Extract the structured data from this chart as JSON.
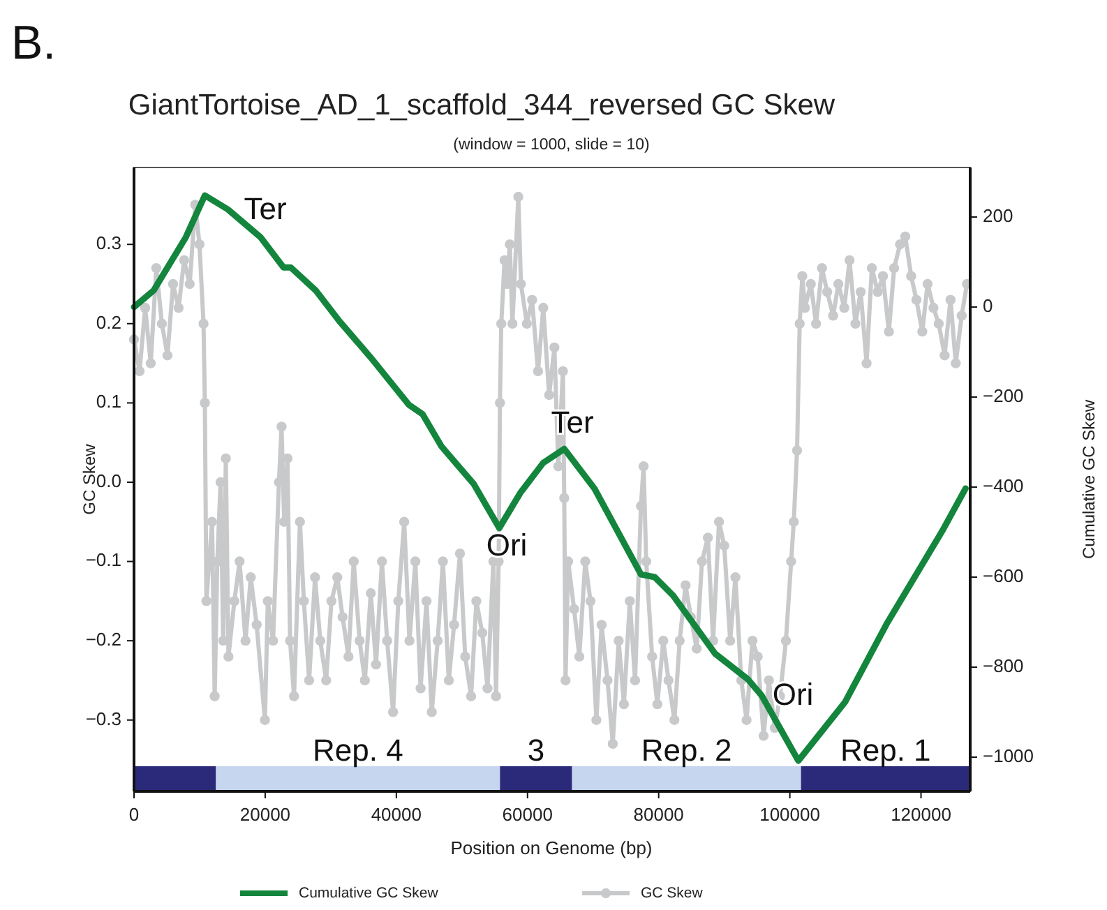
{
  "chart_data": {
    "type": "line",
    "title": "GiantTortoise_AD_1_scaffold_344_reversed GC Skew",
    "subtitle": "(window = 1000, slide = 10)",
    "xlabel": "Position on Genome (bp)",
    "ylabel": "GC Skew",
    "y2label": "Cumulative GC Skew",
    "annotations": [
      "B.",
      "Ter",
      "Ori",
      "Ter",
      "Ori"
    ],
    "xlim": [
      0,
      127500
    ],
    "xticks": [
      0,
      20000,
      40000,
      60000,
      80000,
      100000,
      120000
    ],
    "ylim": [
      -0.39,
      0.397
    ],
    "yticks": [
      {
        "value": -0.3,
        "label": "−0.3"
      },
      {
        "value": -0.2,
        "label": "−0.2"
      },
      {
        "value": -0.1,
        "label": "−0.1"
      },
      {
        "value": 0,
        "label": "0.0"
      },
      0.1,
      0.2,
      0.3
    ],
    "y2lim": [
      -1076,
      310
    ],
    "y2ticks": [
      {
        "value": -1000,
        "label": "−1000"
      },
      {
        "value": -800,
        "label": "−800"
      },
      {
        "value": -600,
        "label": "−600"
      },
      {
        "value": -400,
        "label": "−400"
      },
      {
        "value": -200,
        "label": "−200"
      },
      0,
      200
    ],
    "legend": "bottom",
    "grid": false,
    "bands": [
      {
        "axis": "x",
        "from": 0,
        "to": 12500,
        "label": null,
        "color": "#2b2a7a"
      },
      {
        "axis": "x",
        "from": 12500,
        "to": 55800,
        "label": "Rep. 4",
        "color": "#c5d6ee"
      },
      {
        "axis": "x",
        "from": 55800,
        "to": 66800,
        "label": "3",
        "color": "#2b2a7a"
      },
      {
        "axis": "x",
        "from": 66800,
        "to": 101700,
        "label": "Rep. 2",
        "color": "#c5d6ee"
      },
      {
        "axis": "x",
        "from": 101700,
        "to": 127500,
        "label": "Rep. 1",
        "color": "#2b2a7a"
      }
    ],
    "series": [
      {
        "name": "Cumulative GC Skew",
        "color": "#14853d",
        "axis": "y2",
        "marker": "none",
        "line_style": "solid",
        "x": [
          0,
          3000,
          7900,
          10800,
          14300,
          19300,
          22800,
          23900,
          27700,
          31300,
          36200,
          41900,
          44000,
          46900,
          51800,
          55700,
          58900,
          62400,
          65600,
          70200,
          77300,
          79400,
          82200,
          88600,
          93600,
          95700,
          101300,
          108400,
          114800,
          123300,
          126800
        ],
        "values": [
          0,
          37,
          155,
          248,
          217,
          155,
          88,
          88,
          37,
          -31,
          -114,
          -217,
          -238,
          -310,
          -393,
          -491,
          -413,
          -346,
          -315,
          -403,
          -594,
          -600,
          -641,
          -770,
          -827,
          -863,
          -1008,
          -878,
          -703,
          -496,
          -403
        ]
      },
      {
        "name": "GC Skew",
        "color": "#c8c9cb",
        "marker": "circle",
        "line_style": "solid",
        "x": [
          0,
          850,
          1700,
          2550,
          3400,
          4250,
          5100,
          5950,
          6800,
          7640,
          8490,
          9340,
          9980,
          10600,
          10800,
          11040,
          11900,
          12300,
          12700,
          13200,
          13600,
          14000,
          14400,
          15300,
          16100,
          17000,
          17800,
          18700,
          19960,
          20400,
          21200,
          22100,
          22500,
          22900,
          23400,
          23800,
          24400,
          25300,
          25900,
          26700,
          27600,
          28400,
          29300,
          30100,
          31000,
          31800,
          32700,
          33500,
          34400,
          35200,
          36100,
          36900,
          37800,
          38600,
          39500,
          40300,
          41200,
          42000,
          42900,
          43700,
          44600,
          45400,
          46300,
          47100,
          48000,
          48800,
          49700,
          50500,
          51400,
          52200,
          53100,
          53900,
          54800,
          55200,
          55600,
          55800,
          56000,
          56500,
          56900,
          57300,
          57700,
          58600,
          59000,
          59900,
          60700,
          61600,
          62400,
          63300,
          64100,
          64700,
          65400,
          65600,
          65800,
          66200,
          67100,
          67900,
          68800,
          69600,
          70500,
          71300,
          72200,
          73000,
          73900,
          74700,
          75600,
          76400,
          77300,
          77700,
          78100,
          79000,
          79800,
          80700,
          81500,
          82400,
          83200,
          84100,
          84900,
          85800,
          86600,
          87500,
          88300,
          89200,
          90000,
          90900,
          91700,
          92600,
          93400,
          94300,
          95100,
          96000,
          96800,
          97700,
          98500,
          99400,
          100200,
          100600,
          101100,
          101500,
          101900,
          102300,
          103200,
          104000,
          104900,
          105700,
          106600,
          107400,
          108300,
          109100,
          110000,
          110800,
          111700,
          112500,
          113400,
          114200,
          115100,
          115900,
          116800,
          117600,
          118500,
          119300,
          120200,
          121000,
          121900,
          122700,
          123600,
          124500,
          125300,
          126200,
          127000
        ],
        "values": [
          0.18,
          0.14,
          0.22,
          0.15,
          0.27,
          0.2,
          0.16,
          0.25,
          0.22,
          0.28,
          0.25,
          0.35,
          0.3,
          0.2,
          0.1,
          -0.15,
          -0.05,
          -0.27,
          -0.1,
          0.0,
          -0.2,
          0.03,
          -0.22,
          -0.15,
          -0.1,
          -0.2,
          -0.12,
          -0.18,
          -0.3,
          -0.15,
          -0.2,
          0.0,
          0.07,
          -0.05,
          0.03,
          -0.2,
          -0.27,
          -0.05,
          -0.15,
          -0.25,
          -0.12,
          -0.2,
          -0.25,
          -0.15,
          -0.12,
          -0.17,
          -0.22,
          -0.1,
          -0.2,
          -0.25,
          -0.14,
          -0.23,
          -0.1,
          -0.2,
          -0.29,
          -0.15,
          -0.05,
          -0.2,
          -0.1,
          -0.26,
          -0.15,
          -0.29,
          -0.2,
          -0.1,
          -0.25,
          -0.18,
          -0.09,
          -0.22,
          -0.27,
          -0.15,
          -0.19,
          -0.26,
          -0.1,
          -0.27,
          -0.1,
          0.1,
          0.2,
          0.28,
          0.25,
          0.3,
          0.2,
          0.36,
          0.25,
          0.2,
          0.23,
          0.14,
          0.22,
          0.11,
          0.17,
          0.02,
          0.14,
          -0.02,
          -0.25,
          -0.1,
          -0.16,
          -0.22,
          -0.1,
          -0.15,
          -0.3,
          -0.18,
          -0.25,
          -0.33,
          -0.2,
          -0.28,
          -0.15,
          -0.25,
          -0.03,
          0.02,
          -0.1,
          -0.22,
          -0.28,
          -0.2,
          -0.25,
          -0.3,
          -0.2,
          -0.13,
          -0.17,
          -0.21,
          -0.1,
          -0.07,
          -0.2,
          -0.05,
          -0.08,
          -0.2,
          -0.12,
          -0.25,
          -0.3,
          -0.2,
          -0.22,
          -0.32,
          -0.25,
          -0.31,
          -0.27,
          -0.2,
          -0.1,
          -0.05,
          0.04,
          0.2,
          0.26,
          0.22,
          0.25,
          0.2,
          0.27,
          0.24,
          0.21,
          0.25,
          0.22,
          0.28,
          0.2,
          0.24,
          0.15,
          0.27,
          0.24,
          0.26,
          0.19,
          0.27,
          0.3,
          0.31,
          0.26,
          0.23,
          0.19,
          0.25,
          0.22,
          0.2,
          0.16,
          0.23,
          0.15,
          0.21,
          0.25
        ]
      }
    ]
  }
}
